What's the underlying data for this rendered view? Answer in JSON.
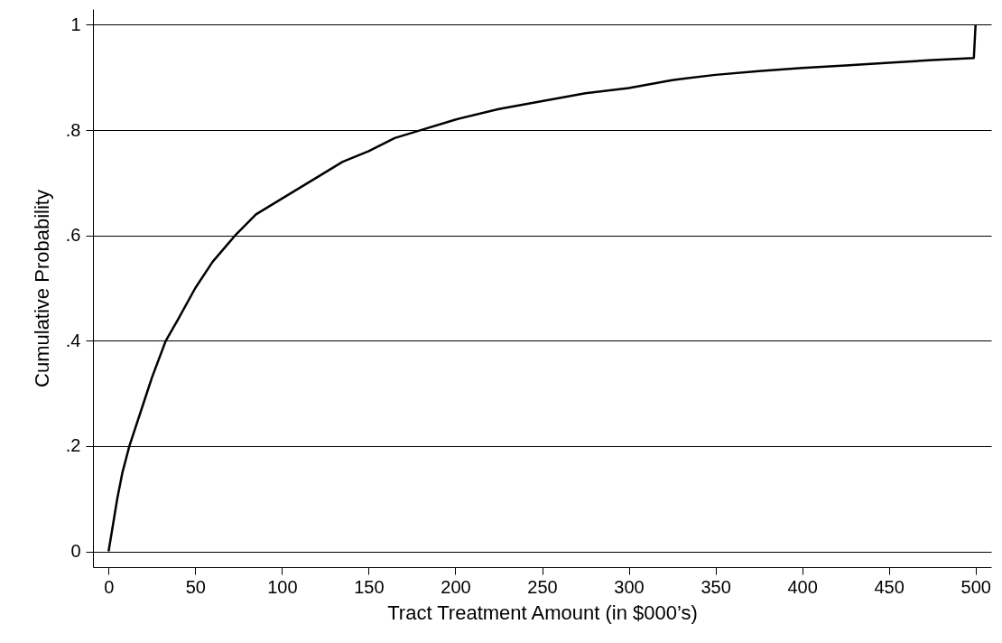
{
  "chart_data": {
    "type": "line",
    "xlabel": "Tract Treatment Amount (in $000’s)",
    "ylabel": "Cumulative Probability",
    "x": [
      0,
      2,
      5,
      8,
      12,
      20,
      25,
      33,
      40,
      50,
      60,
      73,
      85,
      100,
      120,
      135,
      150,
      165,
      180,
      200,
      225,
      250,
      275,
      300,
      325,
      350,
      375,
      400,
      425,
      450,
      475,
      499,
      500
    ],
    "series": [
      {
        "color": "#000000",
        "values": [
          0,
          0.04,
          0.1,
          0.15,
          0.2,
          0.28,
          0.33,
          0.4,
          0.44,
          0.5,
          0.55,
          0.6,
          0.64,
          0.67,
          0.71,
          0.74,
          0.76,
          0.785,
          0.8,
          0.82,
          0.84,
          0.855,
          0.87,
          0.88,
          0.895,
          0.905,
          0.912,
          0.918,
          0.923,
          0.928,
          0.933,
          0.937,
          1
        ]
      }
    ],
    "xlim": [
      -9,
      509
    ],
    "xticks": [
      0,
      50,
      100,
      150,
      200,
      250,
      300,
      350,
      400,
      450,
      500
    ],
    "ylim": [
      -0.03,
      1.03
    ],
    "yticks": [
      0,
      {
        "value": 0.2,
        "label": ".2"
      },
      {
        "value": 0.4,
        "label": ".4"
      },
      {
        "value": 0.6,
        "label": ".6"
      },
      {
        "value": 0.8,
        "label": ".8"
      },
      1
    ],
    "grid": "y",
    "marker": "none",
    "line_style": "solid"
  }
}
